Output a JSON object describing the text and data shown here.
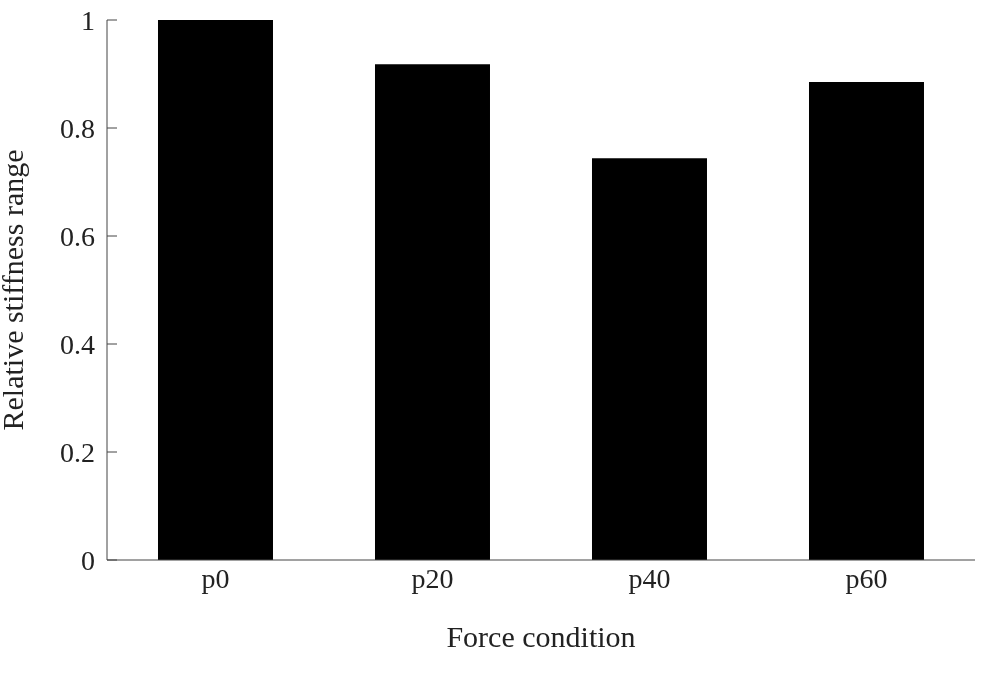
{
  "chart_data": {
    "type": "bar",
    "categories": [
      "p0",
      "p20",
      "p40",
      "p60"
    ],
    "values": [
      1,
      0.918,
      0.744,
      0.885
    ],
    "color": "#000000",
    "xlabel": "Force condition",
    "ylabel": "Relative stiffness range",
    "ylim": [
      0,
      1
    ],
    "yticks": [
      0,
      0.2,
      0.4,
      0.6,
      0.8,
      1
    ],
    "grid": false,
    "legend": false
  }
}
